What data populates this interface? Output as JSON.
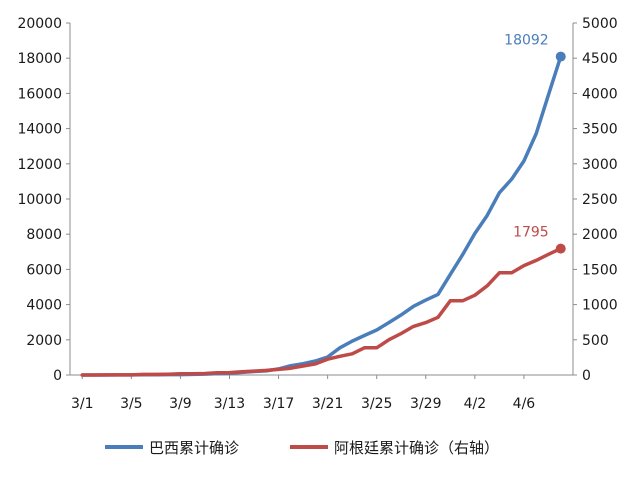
{
  "chart_data": {
    "type": "line",
    "title": "",
    "xlabel": "",
    "ylabel_left": "",
    "ylabel_right": "",
    "x_tick_labels": [
      "3/1",
      "3/5",
      "3/9",
      "3/13",
      "3/17",
      "3/21",
      "3/25",
      "3/29",
      "4/2",
      "4/6"
    ],
    "y_left": {
      "min": 0,
      "max": 20000,
      "step": 2000
    },
    "y_right": {
      "min": 0,
      "max": 5000,
      "step": 500
    },
    "grid": false,
    "legend_position": "bottom",
    "series": [
      {
        "name": "巴西累计确诊",
        "axis": "left",
        "color": "#4a7ebb",
        "x": [
          "3/1",
          "3/2",
          "3/3",
          "3/4",
          "3/5",
          "3/6",
          "3/7",
          "3/8",
          "3/9",
          "3/10",
          "3/11",
          "3/12",
          "3/13",
          "3/14",
          "3/15",
          "3/16",
          "3/17",
          "3/18",
          "3/19",
          "3/20",
          "3/21",
          "3/22",
          "3/23",
          "3/24",
          "3/25",
          "3/26",
          "3/27",
          "3/28",
          "3/29",
          "3/30",
          "3/31",
          "4/1",
          "4/2",
          "4/3",
          "4/4",
          "4/5",
          "4/6",
          "4/7",
          "4/8",
          "4/9"
        ],
        "values": [
          2,
          2,
          2,
          3,
          8,
          13,
          19,
          25,
          25,
          34,
          52,
          77,
          98,
          150,
          200,
          234,
          346,
          529,
          640,
          793,
          1021,
          1546,
          1924,
          2247,
          2554,
          2985,
          3417,
          3904,
          4256,
          4579,
          5717,
          6836,
          8044,
          9056,
          10360,
          11130,
          12161,
          13717,
          15927,
          18092
        ],
        "end_label": "18092"
      },
      {
        "name": "阿根廷累计确诊（右轴）",
        "axis": "right",
        "color": "#be4b48",
        "x": [
          "3/1",
          "3/2",
          "3/3",
          "3/4",
          "3/5",
          "3/6",
          "3/7",
          "3/8",
          "3/9",
          "3/10",
          "3/11",
          "3/12",
          "3/13",
          "3/14",
          "3/15",
          "3/16",
          "3/17",
          "3/18",
          "3/19",
          "3/20",
          "3/21",
          "3/22",
          "3/23",
          "3/24",
          "3/25",
          "3/26",
          "3/27",
          "3/28",
          "3/29",
          "3/30",
          "3/31",
          "4/1",
          "4/2",
          "4/3",
          "4/4",
          "4/5",
          "4/6",
          "4/7",
          "4/8",
          "4/9"
        ],
        "values": [
          0,
          0,
          1,
          1,
          2,
          8,
          9,
          12,
          17,
          19,
          21,
          31,
          34,
          45,
          56,
          65,
          79,
          97,
          128,
          158,
          225,
          266,
          301,
          387,
          387,
          502,
          589,
          690,
          745,
          820,
          1054,
          1054,
          1133,
          1265,
          1451,
          1451,
          1554,
          1628,
          1715,
          1795
        ],
        "end_label": "1795"
      }
    ]
  }
}
